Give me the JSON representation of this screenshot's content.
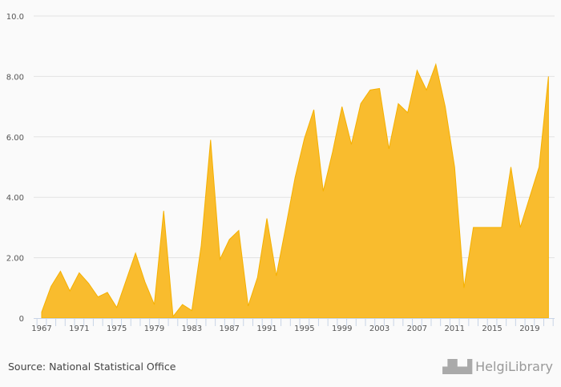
{
  "chart_data": {
    "type": "area",
    "title": "",
    "xlabel": "",
    "ylabel": "",
    "ylim": [
      0,
      10
    ],
    "yticks": [
      "0",
      "2.00",
      "4.00",
      "6.00",
      "8.00",
      "10.0"
    ],
    "ytick_values": [
      0,
      2,
      4,
      6,
      8,
      10
    ],
    "xtick_labels": [
      "1967",
      "1971",
      "1975",
      "1979",
      "1983",
      "1987",
      "1991",
      "1995",
      "1999",
      "2003",
      "2007",
      "2011",
      "2015",
      "2019"
    ],
    "x": [
      1967,
      1968,
      1969,
      1970,
      1971,
      1972,
      1973,
      1974,
      1975,
      1976,
      1977,
      1978,
      1979,
      1980,
      1981,
      1982,
      1983,
      1984,
      1985,
      1986,
      1987,
      1988,
      1989,
      1990,
      1991,
      1992,
      1993,
      1994,
      1995,
      1996,
      1997,
      1998,
      1999,
      2000,
      2001,
      2002,
      2003,
      2004,
      2005,
      2006,
      2007,
      2008,
      2009,
      2010,
      2011,
      2012,
      2013,
      2014,
      2015,
      2016,
      2017,
      2018,
      2019,
      2020,
      2021
    ],
    "values": [
      0.2,
      1.05,
      1.55,
      0.9,
      1.5,
      1.15,
      0.7,
      0.85,
      0.35,
      1.25,
      2.15,
      1.2,
      0.45,
      3.55,
      0.05,
      0.45,
      0.25,
      2.4,
      5.9,
      1.95,
      2.6,
      2.9,
      0.4,
      1.35,
      3.3,
      1.4,
      3.0,
      4.65,
      5.95,
      6.9,
      4.2,
      5.5,
      7.0,
      5.75,
      7.1,
      7.55,
      7.6,
      5.6,
      7.1,
      6.8,
      8.2,
      7.55,
      8.4,
      7.0,
      5.0,
      1.0,
      3.0,
      3.0,
      3.0,
      3.0,
      5.0,
      3.0,
      4.0,
      5.0,
      8.0
    ],
    "grid": true,
    "color": "#f9bc2e",
    "line_color": "#f5b000"
  },
  "footer": {
    "source": "Source: National Statistical Office",
    "logo_text": "HelgiLibrary"
  }
}
